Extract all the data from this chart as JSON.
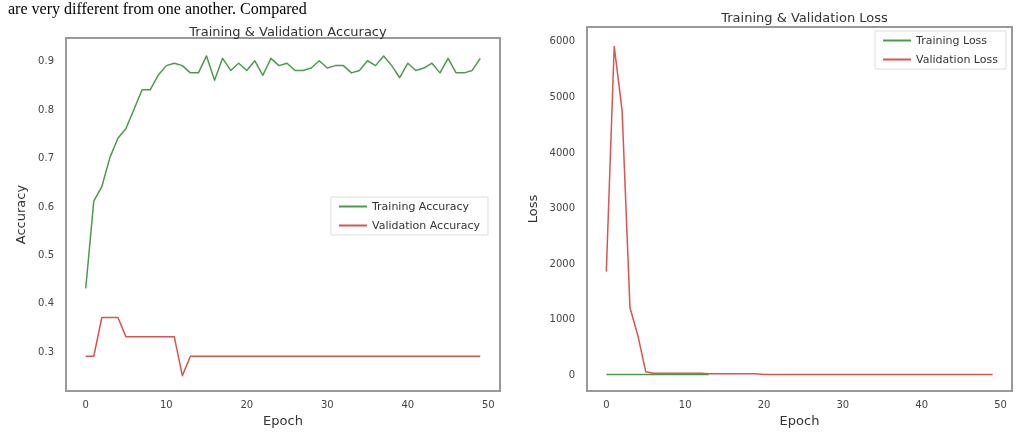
{
  "chart_data": [
    {
      "type": "line",
      "title": "Training & Validation Accuracy",
      "xlabel": "Epoch",
      "ylabel": "Accuracy",
      "annotations": [
        "are very different from one another. Compared"
      ],
      "x": [
        0,
        1,
        2,
        3,
        4,
        5,
        6,
        7,
        8,
        9,
        10,
        11,
        12,
        13,
        14,
        15,
        16,
        17,
        18,
        19,
        20,
        21,
        22,
        23,
        24,
        25,
        26,
        27,
        28,
        29,
        30,
        31,
        32,
        33,
        34,
        35,
        36,
        37,
        38,
        39,
        40,
        41,
        42,
        43,
        44,
        45,
        46,
        47,
        48,
        49
      ],
      "series": [
        {
          "name": "Training Accuracy",
          "color": "#4c9a4c",
          "values": [
            0.43,
            0.61,
            0.64,
            0.7,
            0.74,
            0.76,
            0.8,
            0.84,
            0.84,
            0.87,
            0.89,
            0.895,
            0.89,
            0.875,
            0.875,
            0.91,
            0.86,
            0.905,
            0.88,
            0.895,
            0.88,
            0.9,
            0.87,
            0.905,
            0.89,
            0.895,
            0.88,
            0.88,
            0.885,
            0.9,
            0.885,
            0.89,
            0.89,
            0.875,
            0.88,
            0.9,
            0.89,
            0.91,
            0.89,
            0.865,
            0.895,
            0.88,
            0.885,
            0.895,
            0.875,
            0.905,
            0.875,
            0.875,
            0.88,
            0.905
          ]
        },
        {
          "name": "Validation Accuracy",
          "color": "#d9534f",
          "values": [
            0.29,
            0.29,
            0.37,
            0.37,
            0.37,
            0.33,
            0.33,
            0.33,
            0.33,
            0.33,
            0.33,
            0.33,
            0.25,
            0.29,
            0.29,
            0.29,
            0.29,
            0.29,
            0.29,
            0.29,
            0.29,
            0.29,
            0.29,
            0.29,
            0.29,
            0.29,
            0.29,
            0.29,
            0.29,
            0.29,
            0.29,
            0.29,
            0.29,
            0.29,
            0.29,
            0.29,
            0.29,
            0.29,
            0.29,
            0.29,
            0.29,
            0.29,
            0.29,
            0.29,
            0.29,
            0.29,
            0.29,
            0.29,
            0.29,
            0.29
          ]
        }
      ],
      "xlim": [
        -2.45,
        51.45
      ],
      "xticks": [
        0,
        10,
        20,
        30,
        40,
        50
      ],
      "ylim": [
        0.218,
        0.947
      ],
      "yticks": [
        0.3,
        0.4,
        0.5,
        0.6,
        0.7,
        0.8,
        0.9
      ],
      "grid": false,
      "legend": "right",
      "marker": "none",
      "line_style": "solid"
    },
    {
      "type": "line",
      "title": "Training & Validation Loss",
      "xlabel": "Epoch",
      "ylabel": "Loss",
      "x": [
        0,
        1,
        2,
        3,
        4,
        5,
        6,
        7,
        8,
        9,
        10,
        11,
        12,
        13,
        14,
        15,
        16,
        17,
        18,
        19,
        20,
        21,
        22,
        23,
        24,
        25,
        26,
        27,
        28,
        29,
        30,
        31,
        32,
        33,
        34,
        35,
        36,
        37,
        38,
        39,
        40,
        41,
        42,
        43,
        44,
        45,
        46,
        47,
        48,
        49
      ],
      "series": [
        {
          "name": "Training Loss",
          "color": "#4c9a4c",
          "values": [
            0,
            0,
            0,
            0,
            0,
            0,
            0,
            0,
            0,
            0,
            0,
            0,
            0,
            0,
            null,
            null,
            null,
            null,
            null,
            null,
            null,
            null,
            null,
            null,
            null,
            null,
            null,
            null,
            null,
            null,
            null,
            null,
            null,
            null,
            null,
            null,
            null,
            null,
            null,
            null,
            null,
            null,
            null,
            null,
            null,
            null,
            null,
            null,
            null,
            null
          ]
        },
        {
          "name": "Validation Loss",
          "color": "#d9534f",
          "values": [
            1850,
            5900,
            4750,
            1200,
            700,
            50,
            20,
            20,
            20,
            20,
            20,
            20,
            20,
            10,
            10,
            10,
            10,
            10,
            10,
            10,
            0,
            0,
            0,
            0,
            0,
            0,
            0,
            0,
            0,
            0,
            0,
            0,
            0,
            0,
            0,
            0,
            0,
            0,
            0,
            0,
            0,
            0,
            0,
            0,
            0,
            0,
            0,
            0,
            0,
            0
          ]
        }
      ],
      "xlim": [
        -2.45,
        51.45
      ],
      "xticks": [
        0,
        10,
        20,
        30,
        40,
        50
      ],
      "ylim": [
        -300,
        6250
      ],
      "yticks": [
        0,
        1000,
        2000,
        3000,
        4000,
        5000,
        6000
      ],
      "grid": false,
      "legend": "top right",
      "marker": "none",
      "line_style": "solid"
    }
  ]
}
